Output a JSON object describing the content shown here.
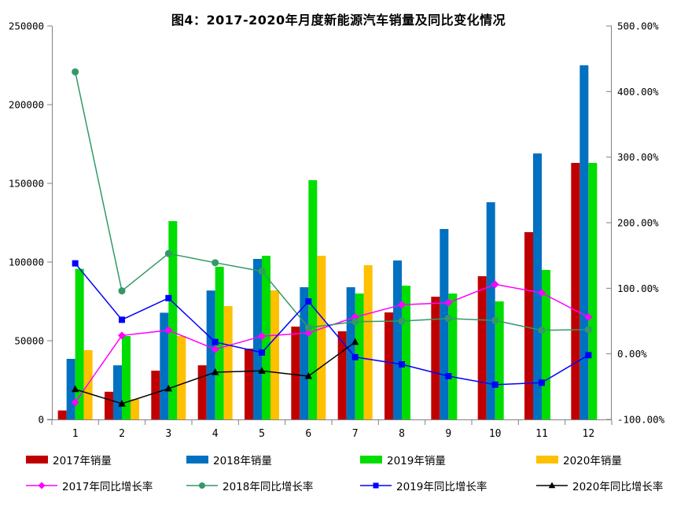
{
  "title": "图4：2017-2020年月度新能源汽车销量及同比变化情况",
  "chart_data": {
    "type": "bar",
    "subtype": "grouped bars with overlaid YoY growth lines, dual y-axes",
    "categories": [
      1,
      2,
      3,
      4,
      5,
      6,
      7,
      8,
      9,
      10,
      11,
      12
    ],
    "x_tick_labels": [
      "1",
      "2",
      "3",
      "4",
      "5",
      "6",
      "7",
      "8",
      "9",
      "10",
      "11",
      "12"
    ],
    "bar_series": [
      {
        "key": "2017-sales",
        "name": "2017年销量",
        "color": "#C00000",
        "values": [
          5700,
          17600,
          31000,
          34400,
          45000,
          59000,
          56000,
          68000,
          78000,
          91000,
          119000,
          163000
        ]
      },
      {
        "key": "2018-sales",
        "name": "2018年销量",
        "color": "#0070C0",
        "values": [
          38500,
          34400,
          67800,
          81900,
          102000,
          84000,
          84000,
          101000,
          121000,
          138000,
          169000,
          225000
        ]
      },
      {
        "key": "2019-sales",
        "name": "2019年销量",
        "color": "#00DD00",
        "values": [
          95700,
          53000,
          126000,
          97000,
          104000,
          152000,
          80000,
          85000,
          80000,
          75000,
          95000,
          163000
        ]
      },
      {
        "key": "2020-sales",
        "name": "2020年销量",
        "color": "#FFC000",
        "values": [
          44000,
          12900,
          53000,
          72000,
          82000,
          104000,
          98000,
          null,
          null,
          null,
          null,
          null
        ]
      }
    ],
    "line_series": [
      {
        "key": "2017-growth",
        "name": "2017年同比增长率",
        "color": "#FF00FF",
        "marker": "diamond",
        "values": [
          -74,
          28,
          36,
          7,
          27,
          32,
          56,
          75,
          78,
          106,
          93,
          56
        ]
      },
      {
        "key": "2018-growth",
        "name": "2018年同比增长率",
        "color": "#339966",
        "marker": "circle",
        "values": [
          430,
          96,
          153,
          139,
          126,
          40,
          49,
          50,
          54,
          51,
          36,
          37
        ]
      },
      {
        "key": "2019-growth",
        "name": "2019年同比增长率",
        "color": "#0000FF",
        "marker": "square",
        "values": [
          138,
          52,
          85,
          18,
          2,
          80,
          -5,
          -16,
          -34,
          -47,
          -44,
          -2
        ]
      },
      {
        "key": "2020-growth",
        "name": "2020年同比增长率",
        "color": "#000000",
        "marker": "triangle",
        "values": [
          -54,
          -76,
          -53,
          -28,
          -26,
          -34,
          18,
          null,
          null,
          null,
          null,
          null
        ]
      }
    ],
    "left_axis": {
      "min": 0,
      "max": 250000,
      "step": 50000,
      "tick_labels": [
        "0",
        "50000",
        "100000",
        "150000",
        "200000",
        "250000"
      ]
    },
    "right_axis": {
      "min": -100,
      "max": 500,
      "step": 100,
      "tick_labels": [
        "-100.00%",
        "0.00%",
        "100.00%",
        "200.00%",
        "300.00%",
        "400.00%",
        "500.00%"
      ]
    },
    "grid": false,
    "legend_position": "bottom",
    "axis_color": "#808080",
    "text_color": "#000000",
    "background_color": "#FFFFFF"
  }
}
